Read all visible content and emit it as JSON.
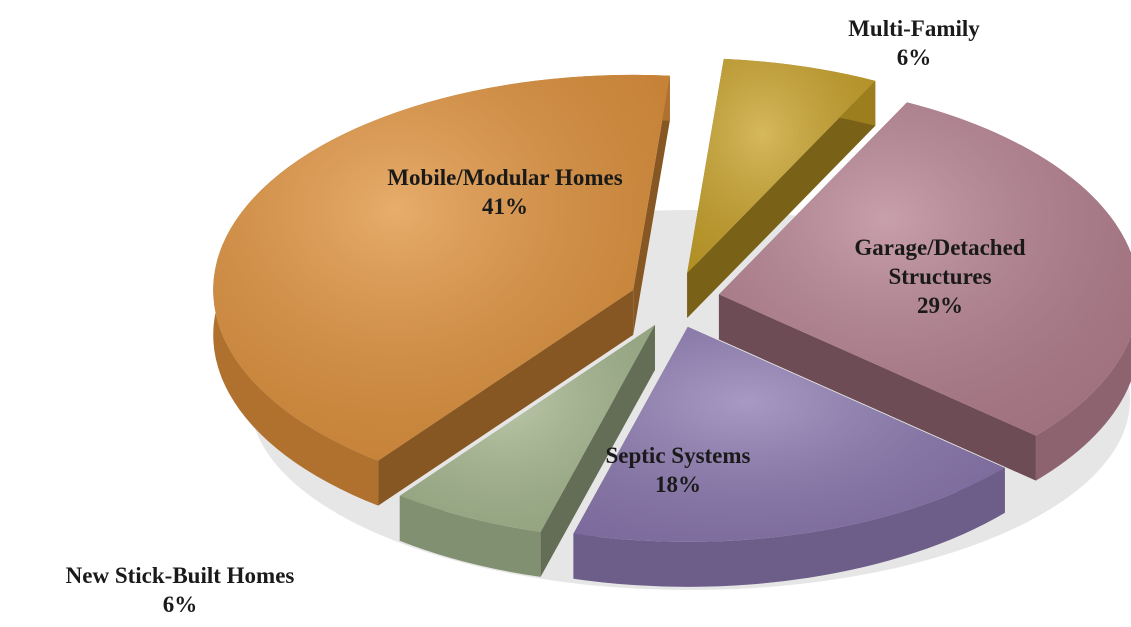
{
  "chart_data": {
    "type": "pie",
    "categories": [
      "Multi-Family",
      "Garage/Detached Structures",
      "Septic Systems",
      "New Stick-Built Homes",
      "Mobile/Modular Homes"
    ],
    "values": [
      6,
      29,
      18,
      6,
      41
    ],
    "value_labels": [
      "6%",
      "29%",
      "18%",
      "6%",
      "41%"
    ],
    "colors": [
      "#c9a227",
      "#b57f8f",
      "#8b77b0",
      "#a6b88f",
      "#e0913a"
    ]
  }
}
